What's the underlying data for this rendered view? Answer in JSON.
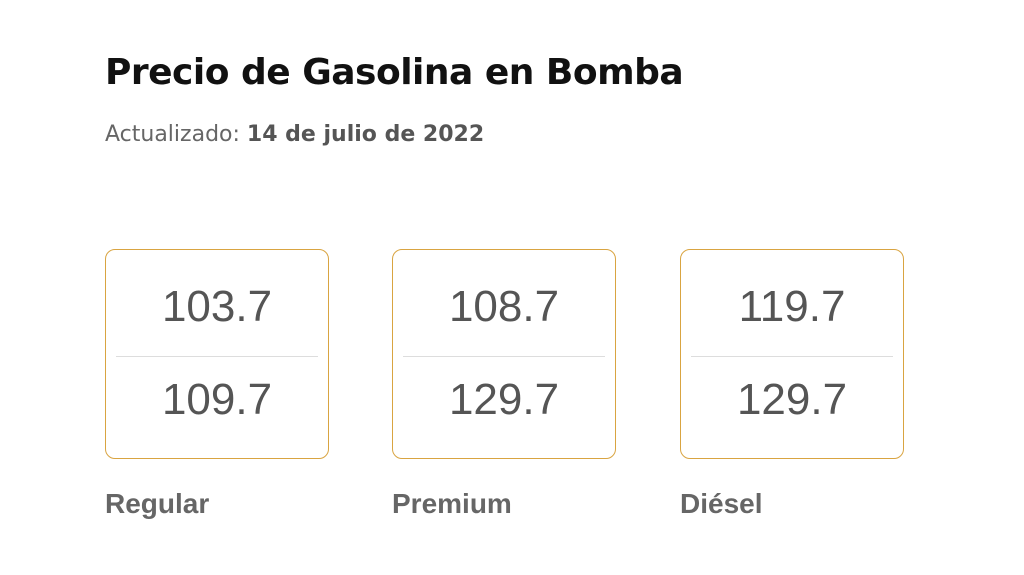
{
  "header": {
    "title": "Precio de Gasolina en Bomba",
    "updated_label": "Actualizado:",
    "updated_date": "14 de julio de 2022"
  },
  "accent_color": "#d9a441",
  "fuels": [
    {
      "name": "Regular",
      "price_low": "103.7",
      "price_high": "109.7"
    },
    {
      "name": "Premium",
      "price_low": "108.7",
      "price_high": "129.7"
    },
    {
      "name": "Diésel",
      "price_low": "119.7",
      "price_high": "129.7"
    }
  ]
}
